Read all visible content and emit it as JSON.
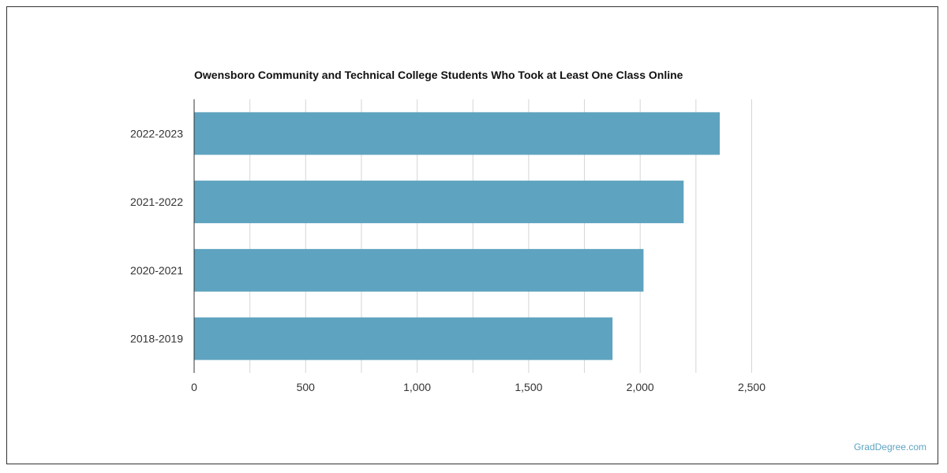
{
  "watermark": "GradDegree.com",
  "colors": {
    "bar": "#5ea3bf",
    "grid": "#d6d6d6",
    "axis": "#333333",
    "watermark": "#5ea3bf"
  },
  "chart_data": {
    "type": "bar",
    "orientation": "horizontal",
    "title": "Owensboro Community and Technical College Students Who Took at Least One Class Online",
    "xlabel": "",
    "ylabel": "",
    "categories": [
      "2022-2023",
      "2021-2022",
      "2020-2021",
      "2018-2019"
    ],
    "values": [
      2357,
      2195,
      2015,
      1876
    ],
    "xlim": [
      0,
      2500
    ],
    "ticks": [
      0,
      500,
      1000,
      1500,
      2000,
      2500
    ],
    "tick_labels": [
      "0",
      "500",
      "1,000",
      "1,500",
      "2,000",
      "2,500"
    ],
    "grid": true,
    "legend": "none"
  }
}
